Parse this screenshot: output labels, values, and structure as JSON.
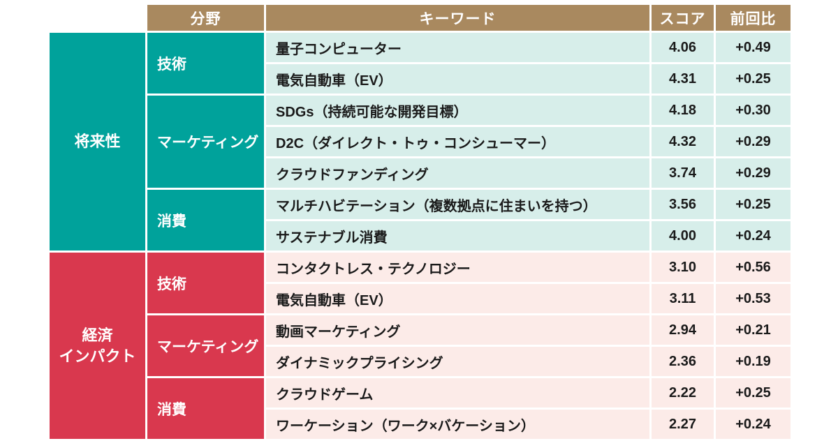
{
  "colors": {
    "header_bg": "#a9895f",
    "teal": "#00a29b",
    "teal_row_bg": "#d7eeea",
    "red": "#d9384e",
    "red_row_bg": "#fcebe8",
    "cell_border": "#ffffff",
    "text_dark": "#1a1a1a",
    "text_light": "#ffffff"
  },
  "chart_data": {
    "type": "table",
    "headers": {
      "field": "分野",
      "keyword": "キーワード",
      "score": "スコア",
      "delta": "前回比"
    },
    "groups": [
      {
        "label": "将来性",
        "color": "#00a29b",
        "row_bg": "#d7eeea",
        "sections": [
          {
            "label": "技術",
            "rows": [
              {
                "keyword": "量子コンピューター",
                "score": "4.06",
                "delta": "+0.49"
              },
              {
                "keyword": "電気自動車（EV）",
                "score": "4.31",
                "delta": "+0.25"
              }
            ]
          },
          {
            "label": "マーケティング",
            "rows": [
              {
                "keyword": "SDGs（持続可能な開発目標）",
                "score": "4.18",
                "delta": "+0.30"
              },
              {
                "keyword": "D2C（ダイレクト・トゥ・コンシューマー）",
                "score": "4.32",
                "delta": "+0.29"
              },
              {
                "keyword": "クラウドファンディング",
                "score": "3.74",
                "delta": "+0.29"
              }
            ]
          },
          {
            "label": "消費",
            "rows": [
              {
                "keyword": "マルチハビテーション（複数拠点に住まいを持つ）",
                "score": "3.56",
                "delta": "+0.25"
              },
              {
                "keyword": "サステナブル消費",
                "score": "4.00",
                "delta": "+0.24"
              }
            ]
          }
        ]
      },
      {
        "label": "経済\nインパクト",
        "color": "#d9384e",
        "row_bg": "#fcebe8",
        "sections": [
          {
            "label": "技術",
            "rows": [
              {
                "keyword": "コンタクトレス・テクノロジー",
                "score": "3.10",
                "delta": "+0.56"
              },
              {
                "keyword": "電気自動車（EV）",
                "score": "3.11",
                "delta": "+0.53"
              }
            ]
          },
          {
            "label": "マーケティング",
            "rows": [
              {
                "keyword": "動画マーケティング",
                "score": "2.94",
                "delta": "+0.21"
              },
              {
                "keyword": "ダイナミックプライシング",
                "score": "2.36",
                "delta": "+0.19"
              }
            ]
          },
          {
            "label": "消費",
            "rows": [
              {
                "keyword": "クラウドゲーム",
                "score": "2.22",
                "delta": "+0.25"
              },
              {
                "keyword": "ワーケーション（ワーク×バケーション）",
                "score": "2.27",
                "delta": "+0.24"
              }
            ]
          }
        ]
      }
    ]
  }
}
